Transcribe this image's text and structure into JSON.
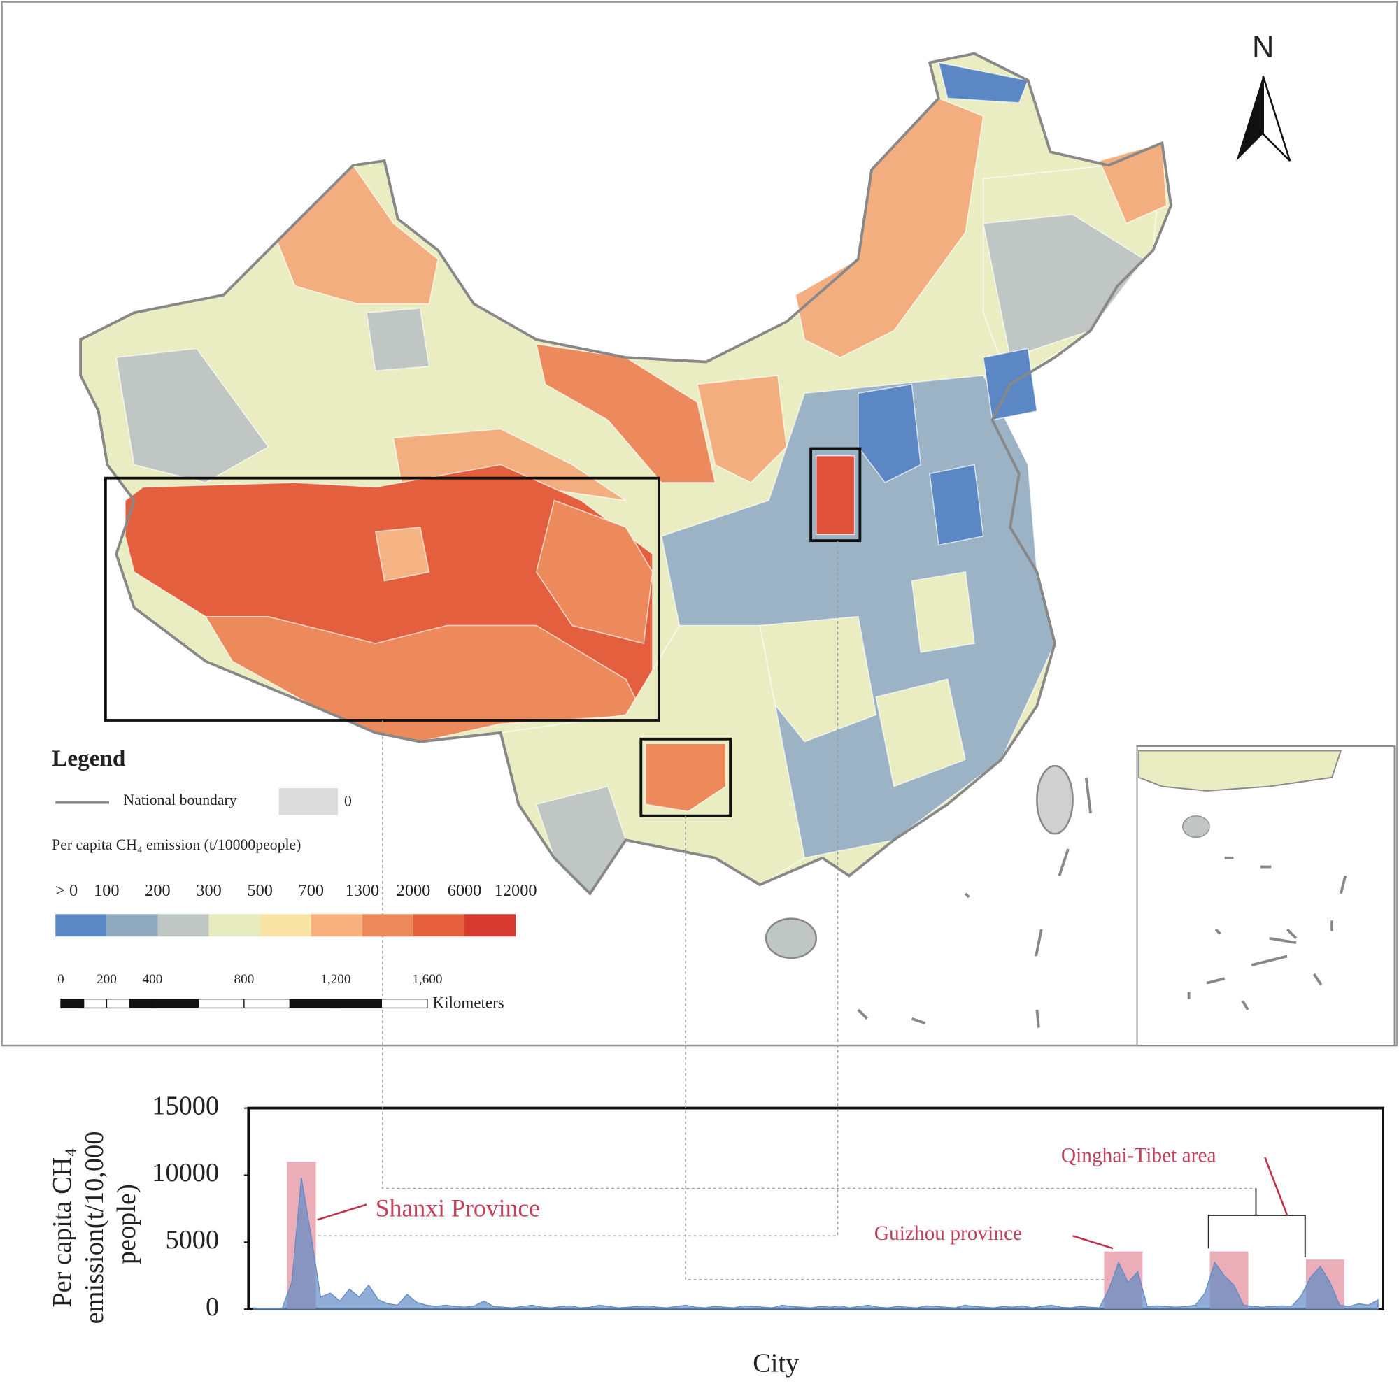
{
  "map": {
    "north": "N",
    "legend": {
      "title": "Legend",
      "boundary": "National boundary",
      "zero_label": 0,
      "measure_title": "Per capita CH₄ emission (t/10000people)",
      "bins": [
        {
          "value": 0,
          "label": "> 0"
        },
        100,
        200,
        300,
        500,
        700,
        1300,
        2000,
        6000,
        12000
      ],
      "colors": [
        "#5b87c5",
        "#8fa9bf",
        "#bfc6c3",
        "#e6ecbf",
        "#f9e3a4",
        "#f5b07e",
        "#ed8a5c",
        "#e45f3e",
        "#d63a2f"
      ],
      "zero_color": "#dcdcdc"
    },
    "scale_bar": {
      "ticks": [
        0,
        200,
        400,
        800,
        {
          "value": 1200,
          "label": "1,200"
        },
        {
          "value": 1600,
          "label": "1,600"
        }
      ],
      "unit": "Kilometers"
    }
  },
  "chart_data": {
    "type": "area",
    "ylabel": [
      "Per capita CH₄",
      "emission(t/10,000",
      "people)"
    ],
    "xlabel": "City",
    "ylim": [
      0,
      15000
    ],
    "yticks": [
      0,
      5000,
      10000,
      15000
    ],
    "color": "#5f8ac4",
    "values": [
      100,
      50,
      80,
      60,
      2000,
      9800,
      5500,
      900,
      1200,
      600,
      1500,
      900,
      1800,
      700,
      400,
      300,
      1100,
      500,
      300,
      200,
      300,
      200,
      150,
      250,
      600,
      200,
      150,
      100,
      200,
      300,
      150,
      100,
      200,
      250,
      100,
      150,
      300,
      200,
      100,
      150,
      200,
      250,
      150,
      100,
      200,
      300,
      150,
      100,
      200,
      150,
      100,
      250,
      200,
      150,
      100,
      300,
      200,
      150,
      100,
      200,
      150,
      250,
      100,
      200,
      300,
      150,
      100,
      200,
      150,
      100,
      250,
      200,
      150,
      100,
      300,
      200,
      150,
      100,
      200,
      150,
      250,
      100,
      200,
      300,
      150,
      100,
      200,
      150,
      100,
      1500,
      3500,
      2000,
      2800,
      200,
      250,
      200,
      150,
      200,
      300,
      1200,
      3500,
      2500,
      1800,
      300,
      200,
      150,
      200,
      250,
      200,
      1000,
      2400,
      3200,
      2000,
      300,
      200,
      400,
      300,
      700
    ],
    "highlight_color": "#e8a0ab",
    "highlights": [
      {
        "name": "Shanxi Province",
        "value": 11000
      },
      {
        "name": "Guizhou province",
        "value": 4300
      },
      {
        "name": "Qinghai-Tibet area",
        "value": 4300
      },
      {
        "value": 3700
      }
    ]
  }
}
